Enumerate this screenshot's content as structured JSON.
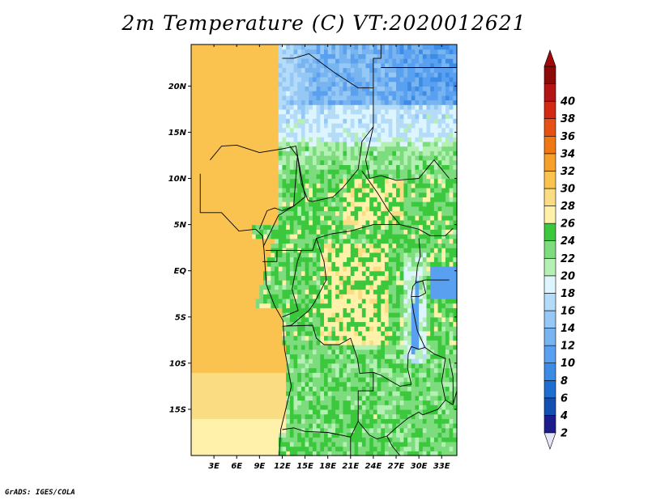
{
  "title": "2m Temperature (C) VT:2020012621",
  "credit": "GrADS: IGES/COLA",
  "chart_data": {
    "type": "heatmap",
    "variable": "2m Temperature (C)",
    "x_axis": {
      "range": [
        0,
        35
      ],
      "ticks": [
        3,
        6,
        9,
        12,
        15,
        18,
        21,
        24,
        27,
        30,
        33
      ],
      "tick_labels": [
        "3E",
        "6E",
        "9E",
        "12E",
        "15E",
        "18E",
        "21E",
        "24E",
        "27E",
        "30E",
        "33E"
      ]
    },
    "y_axis": {
      "range": [
        -20,
        24.5
      ],
      "ticks": [
        20,
        15,
        10,
        5,
        0,
        -5,
        -10,
        -15
      ],
      "tick_labels": [
        "20N",
        "15N",
        "10N",
        "5N",
        "EQ",
        "5S",
        "10S",
        "15S"
      ]
    },
    "colorbar": {
      "levels": [
        2,
        4,
        6,
        8,
        10,
        12,
        14,
        16,
        18,
        20,
        22,
        24,
        26,
        28,
        30,
        32,
        34,
        36,
        38,
        40
      ],
      "colors": [
        "#1c1c8c",
        "#1450b4",
        "#1e6ed2",
        "#3c8ce6",
        "#5aa0f0",
        "#78b4f0",
        "#96c8f5",
        "#b4dcf8",
        "#dcf5ff",
        "#b4f0b4",
        "#7ddc7d",
        "#3cc83c",
        "#fff0aa",
        "#fadc82",
        "#fac350",
        "#f5a028",
        "#f07814",
        "#e65014",
        "#d22814",
        "#b41414",
        "#8c0a0a"
      ],
      "below_color": "#e6e6fa",
      "above_color": "#a00a0a"
    },
    "colors": {
      "country_border": "#000000",
      "lake_blue": "#5aa0f0"
    }
  }
}
